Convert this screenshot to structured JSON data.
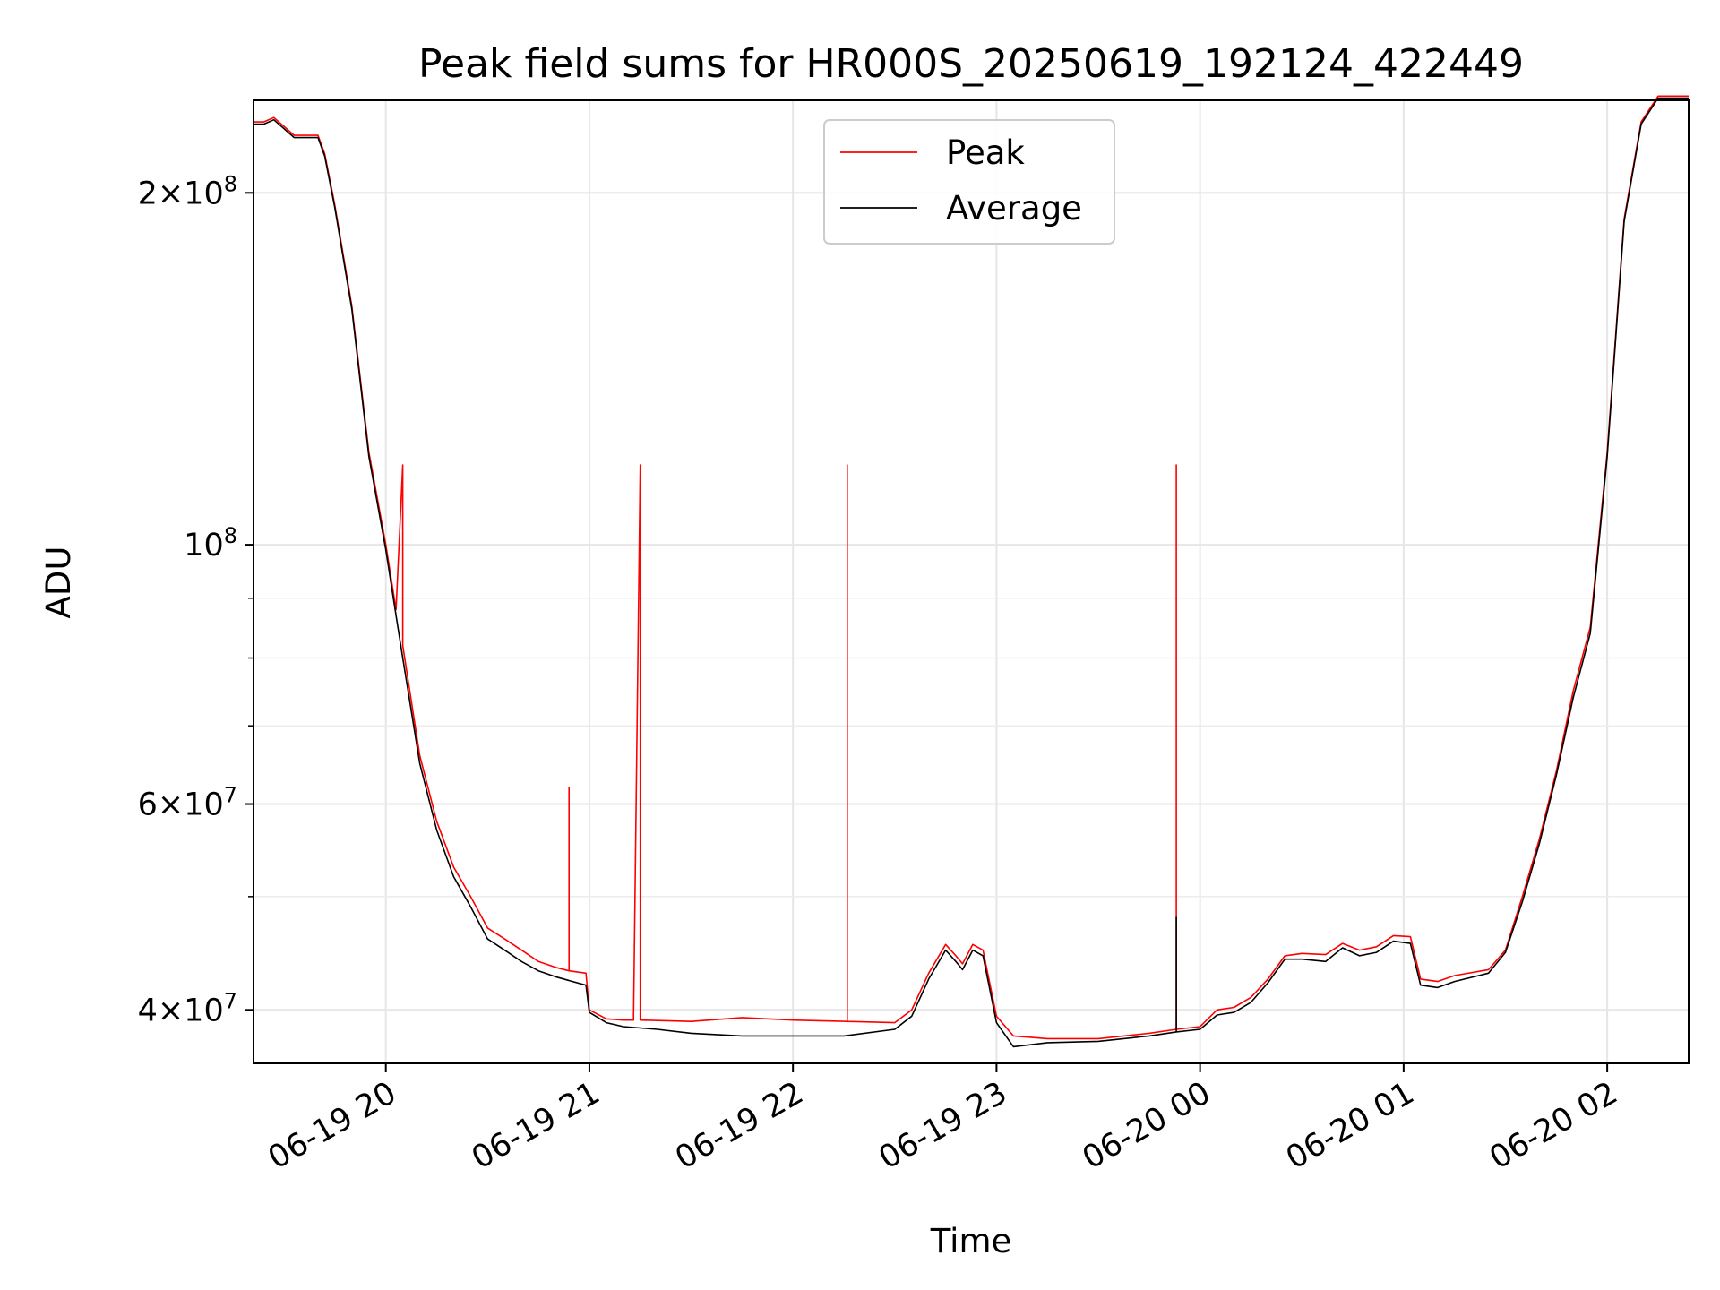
{
  "chart_data": {
    "type": "line",
    "title": "Peak field sums for HR000S_20250619_192124_422449",
    "xlabel": "Time",
    "ylabel": "ADU",
    "y_scale": "log",
    "ylim": [
      36000000,
      240000000
    ],
    "xlim": [
      "2025-06-19 19:21",
      "2025-06-20 02:24"
    ],
    "grid": true,
    "legend_placement": "top-center",
    "x_ticks": [
      {
        "t": "2025-06-19 20:00",
        "label": "06-19 20"
      },
      {
        "t": "2025-06-19 21:00",
        "label": "06-19 21"
      },
      {
        "t": "2025-06-19 22:00",
        "label": "06-19 22"
      },
      {
        "t": "2025-06-19 23:00",
        "label": "06-19 23"
      },
      {
        "t": "2025-06-20 00:00",
        "label": "06-20 00"
      },
      {
        "t": "2025-06-20 01:00",
        "label": "06-20 01"
      },
      {
        "t": "2025-06-20 02:00",
        "label": "06-20 02"
      }
    ],
    "y_ticks": [
      {
        "value": 40000000,
        "mant": "4",
        "exp": "7"
      },
      {
        "value": 60000000,
        "mant": "6",
        "exp": "7"
      },
      {
        "value": 100000000,
        "mant": "",
        "exp": "8"
      },
      {
        "value": 200000000,
        "mant": "2",
        "exp": "8"
      }
    ],
    "y_minor_ticks": [
      50000000,
      70000000,
      80000000,
      90000000
    ],
    "series": [
      {
        "name": "Peak",
        "color": "#ff0000",
        "points": [
          [
            "2025-06-19 19:21",
            230000000
          ],
          [
            "2025-06-19 19:24",
            230000000
          ],
          [
            "2025-06-19 19:27",
            232000000
          ],
          [
            "2025-06-19 19:33",
            224000000
          ],
          [
            "2025-06-19 19:40",
            224000000
          ],
          [
            "2025-06-19 19:42",
            216000000
          ],
          [
            "2025-06-19 19:45",
            195000000
          ],
          [
            "2025-06-19 19:50",
            160000000
          ],
          [
            "2025-06-19 19:55",
            120000000
          ],
          [
            "2025-06-19 20:00",
            100000000
          ],
          [
            "2025-06-19 20:03",
            88000000
          ],
          [
            "2025-06-19 20:05",
            117000000
          ],
          [
            "2025-06-19 20:05",
            82000000
          ],
          [
            "2025-06-19 20:10",
            66000000
          ],
          [
            "2025-06-19 20:15",
            58000000
          ],
          [
            "2025-06-19 20:20",
            53000000
          ],
          [
            "2025-06-19 20:25",
            50000000
          ],
          [
            "2025-06-19 20:30",
            47000000
          ],
          [
            "2025-06-19 20:35",
            46000000
          ],
          [
            "2025-06-19 20:40",
            45000000
          ],
          [
            "2025-06-19 20:45",
            44000000
          ],
          [
            "2025-06-19 20:50",
            43500000
          ],
          [
            "2025-06-19 20:54",
            43200000
          ],
          [
            "2025-06-19 20:54",
            62000000
          ],
          [
            "2025-06-19 20:54",
            43200000
          ],
          [
            "2025-06-19 20:59",
            43000000
          ],
          [
            "2025-06-19 21:00",
            40000000
          ],
          [
            "2025-06-19 21:05",
            39300000
          ],
          [
            "2025-06-19 21:10",
            39200000
          ],
          [
            "2025-06-19 21:13",
            39200000
          ],
          [
            "2025-06-19 21:15",
            117000000
          ],
          [
            "2025-06-19 21:15",
            39200000
          ],
          [
            "2025-06-19 21:30",
            39100000
          ],
          [
            "2025-06-19 21:45",
            39400000
          ],
          [
            "2025-06-19 22:00",
            39200000
          ],
          [
            "2025-06-19 22:16",
            39100000
          ],
          [
            "2025-06-19 22:16",
            117000000
          ],
          [
            "2025-06-19 22:16",
            39100000
          ],
          [
            "2025-06-19 22:30",
            39000000
          ],
          [
            "2025-06-19 22:35",
            40000000
          ],
          [
            "2025-06-19 22:40",
            43000000
          ],
          [
            "2025-06-19 22:45",
            45500000
          ],
          [
            "2025-06-19 22:48",
            44500000
          ],
          [
            "2025-06-19 22:50",
            43800000
          ],
          [
            "2025-06-19 22:53",
            45500000
          ],
          [
            "2025-06-19 22:56",
            45000000
          ],
          [
            "2025-06-19 23:00",
            39500000
          ],
          [
            "2025-06-19 23:05",
            38000000
          ],
          [
            "2025-06-19 23:15",
            37800000
          ],
          [
            "2025-06-19 23:30",
            37800000
          ],
          [
            "2025-06-19 23:45",
            38200000
          ],
          [
            "2025-06-19 23:53",
            38500000
          ],
          [
            "2025-06-19 23:53",
            117000000
          ],
          [
            "2025-06-19 23:53",
            38500000
          ],
          [
            "2025-06-20 00:00",
            38700000
          ],
          [
            "2025-06-20 00:05",
            40000000
          ],
          [
            "2025-06-20 00:10",
            40200000
          ],
          [
            "2025-06-20 00:15",
            41000000
          ],
          [
            "2025-06-20 00:20",
            42500000
          ],
          [
            "2025-06-20 00:25",
            44500000
          ],
          [
            "2025-06-20 00:30",
            44700000
          ],
          [
            "2025-06-20 00:37",
            44600000
          ],
          [
            "2025-06-20 00:42",
            45600000
          ],
          [
            "2025-06-20 00:47",
            45000000
          ],
          [
            "2025-06-20 00:52",
            45300000
          ],
          [
            "2025-06-20 00:57",
            46300000
          ],
          [
            "2025-06-20 01:02",
            46200000
          ],
          [
            "2025-06-20 01:05",
            42500000
          ],
          [
            "2025-06-20 01:10",
            42300000
          ],
          [
            "2025-06-20 01:15",
            42800000
          ],
          [
            "2025-06-20 01:25",
            43300000
          ],
          [
            "2025-06-20 01:30",
            45000000
          ],
          [
            "2025-06-20 01:35",
            50000000
          ],
          [
            "2025-06-20 01:40",
            56000000
          ],
          [
            "2025-06-20 01:45",
            64000000
          ],
          [
            "2025-06-20 01:50",
            75000000
          ],
          [
            "2025-06-20 01:55",
            85000000
          ],
          [
            "2025-06-20 02:00",
            120000000
          ],
          [
            "2025-06-20 02:05",
            190000000
          ],
          [
            "2025-06-20 02:10",
            230000000
          ],
          [
            "2025-06-20 02:15",
            242000000
          ],
          [
            "2025-06-20 02:24",
            242000000
          ]
        ]
      },
      {
        "name": "Average",
        "color": "#000000",
        "points": [
          [
            "2025-06-19 19:21",
            229000000
          ],
          [
            "2025-06-19 19:24",
            229000000
          ],
          [
            "2025-06-19 19:27",
            231000000
          ],
          [
            "2025-06-19 19:33",
            223000000
          ],
          [
            "2025-06-19 19:40",
            223000000
          ],
          [
            "2025-06-19 19:42",
            215000000
          ],
          [
            "2025-06-19 19:45",
            194000000
          ],
          [
            "2025-06-19 19:50",
            159000000
          ],
          [
            "2025-06-19 19:55",
            119000000
          ],
          [
            "2025-06-19 20:00",
            99000000
          ],
          [
            "2025-06-19 20:03",
            87000000
          ],
          [
            "2025-06-19 20:05",
            80000000
          ],
          [
            "2025-06-19 20:10",
            65000000
          ],
          [
            "2025-06-19 20:15",
            57000000
          ],
          [
            "2025-06-19 20:20",
            52000000
          ],
          [
            "2025-06-19 20:25",
            49000000
          ],
          [
            "2025-06-19 20:30",
            46000000
          ],
          [
            "2025-06-19 20:35",
            45000000
          ],
          [
            "2025-06-19 20:40",
            44000000
          ],
          [
            "2025-06-19 20:45",
            43200000
          ],
          [
            "2025-06-19 20:50",
            42700000
          ],
          [
            "2025-06-19 20:55",
            42300000
          ],
          [
            "2025-06-19 20:59",
            42000000
          ],
          [
            "2025-06-19 21:00",
            39800000
          ],
          [
            "2025-06-19 21:05",
            39000000
          ],
          [
            "2025-06-19 21:10",
            38700000
          ],
          [
            "2025-06-19 21:20",
            38500000
          ],
          [
            "2025-06-19 21:30",
            38200000
          ],
          [
            "2025-06-19 21:45",
            38000000
          ],
          [
            "2025-06-19 22:00",
            38000000
          ],
          [
            "2025-06-19 22:15",
            38000000
          ],
          [
            "2025-06-19 22:30",
            38500000
          ],
          [
            "2025-06-19 22:35",
            39500000
          ],
          [
            "2025-06-19 22:40",
            42500000
          ],
          [
            "2025-06-19 22:45",
            45000000
          ],
          [
            "2025-06-19 22:48",
            44000000
          ],
          [
            "2025-06-19 22:50",
            43300000
          ],
          [
            "2025-06-19 22:53",
            45000000
          ],
          [
            "2025-06-19 22:56",
            44500000
          ],
          [
            "2025-06-19 23:00",
            39000000
          ],
          [
            "2025-06-19 23:05",
            37200000
          ],
          [
            "2025-06-19 23:15",
            37500000
          ],
          [
            "2025-06-19 23:30",
            37600000
          ],
          [
            "2025-06-19 23:45",
            38000000
          ],
          [
            "2025-06-19 23:53",
            38300000
          ],
          [
            "2025-06-19 23:53",
            48000000
          ],
          [
            "2025-06-19 23:53",
            38300000
          ],
          [
            "2025-06-20 00:00",
            38500000
          ],
          [
            "2025-06-20 00:05",
            39600000
          ],
          [
            "2025-06-20 00:10",
            39800000
          ],
          [
            "2025-06-20 00:15",
            40600000
          ],
          [
            "2025-06-20 00:20",
            42200000
          ],
          [
            "2025-06-20 00:25",
            44200000
          ],
          [
            "2025-06-20 00:30",
            44200000
          ],
          [
            "2025-06-20 00:37",
            44000000
          ],
          [
            "2025-06-20 00:42",
            45200000
          ],
          [
            "2025-06-20 00:47",
            44500000
          ],
          [
            "2025-06-20 00:52",
            44800000
          ],
          [
            "2025-06-20 00:57",
            45800000
          ],
          [
            "2025-06-20 01:02",
            45600000
          ],
          [
            "2025-06-20 01:05",
            42000000
          ],
          [
            "2025-06-20 01:10",
            41800000
          ],
          [
            "2025-06-20 01:15",
            42300000
          ],
          [
            "2025-06-20 01:25",
            43000000
          ],
          [
            "2025-06-20 01:30",
            44800000
          ],
          [
            "2025-06-20 01:35",
            49500000
          ],
          [
            "2025-06-20 01:40",
            55500000
          ],
          [
            "2025-06-20 01:45",
            63500000
          ],
          [
            "2025-06-20 01:50",
            74000000
          ],
          [
            "2025-06-20 01:55",
            84000000
          ],
          [
            "2025-06-20 02:00",
            119000000
          ],
          [
            "2025-06-20 02:05",
            189000000
          ],
          [
            "2025-06-20 02:10",
            229000000
          ],
          [
            "2025-06-20 02:15",
            241000000
          ],
          [
            "2025-06-20 02:24",
            241000000
          ]
        ]
      }
    ]
  }
}
